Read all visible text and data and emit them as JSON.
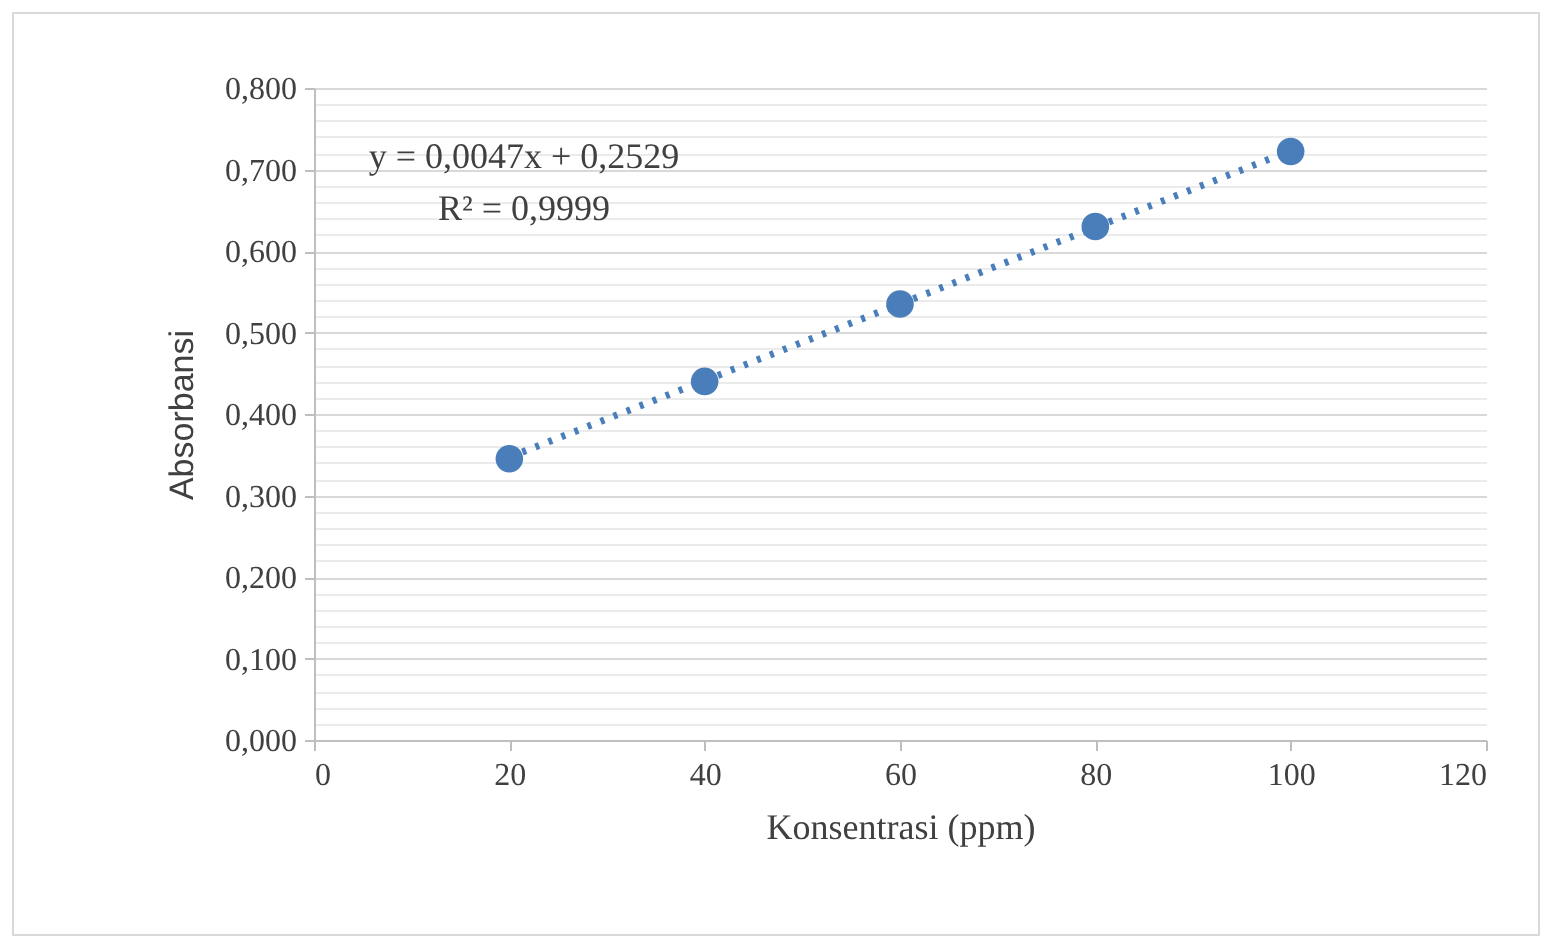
{
  "chart_data": {
    "type": "scatter",
    "xlabel": "Konsentrasi (ppm)",
    "ylabel": "Absorbansi",
    "x": [
      20,
      40,
      60,
      80,
      100
    ],
    "series": [
      {
        "color": "#4a7ebb",
        "values": [
          0.345,
          0.44,
          0.535,
          0.63,
          0.722
        ],
        "marker": "circle"
      },
      {
        "type": "line",
        "color": "#4a7ebb",
        "x": [
          20,
          100
        ],
        "values": [
          0.347,
          0.723
        ],
        "line_style": "dotted",
        "marker": "none"
      }
    ],
    "annotations": [
      "y = 0,0047x + 0,2529",
      "R² = 0,9999"
    ],
    "xlim": [
      0,
      120
    ],
    "xticks": [
      0,
      20,
      40,
      60,
      80,
      100,
      120
    ],
    "ylim": [
      0,
      0.8
    ],
    "yticks": [
      {
        "value": 0,
        "label": "0,000"
      },
      {
        "value": 0.1,
        "label": "0,100"
      },
      {
        "value": 0.2,
        "label": "0,200"
      },
      {
        "value": 0.3,
        "label": "0,300"
      },
      {
        "value": 0.4,
        "label": "0,400"
      },
      {
        "value": 0.5,
        "label": "0,500"
      },
      {
        "value": 0.6,
        "label": "0,600"
      },
      {
        "value": 0.7,
        "label": "0,700"
      },
      {
        "value": 0.8,
        "label": "0,800"
      }
    ],
    "grid": "y"
  }
}
